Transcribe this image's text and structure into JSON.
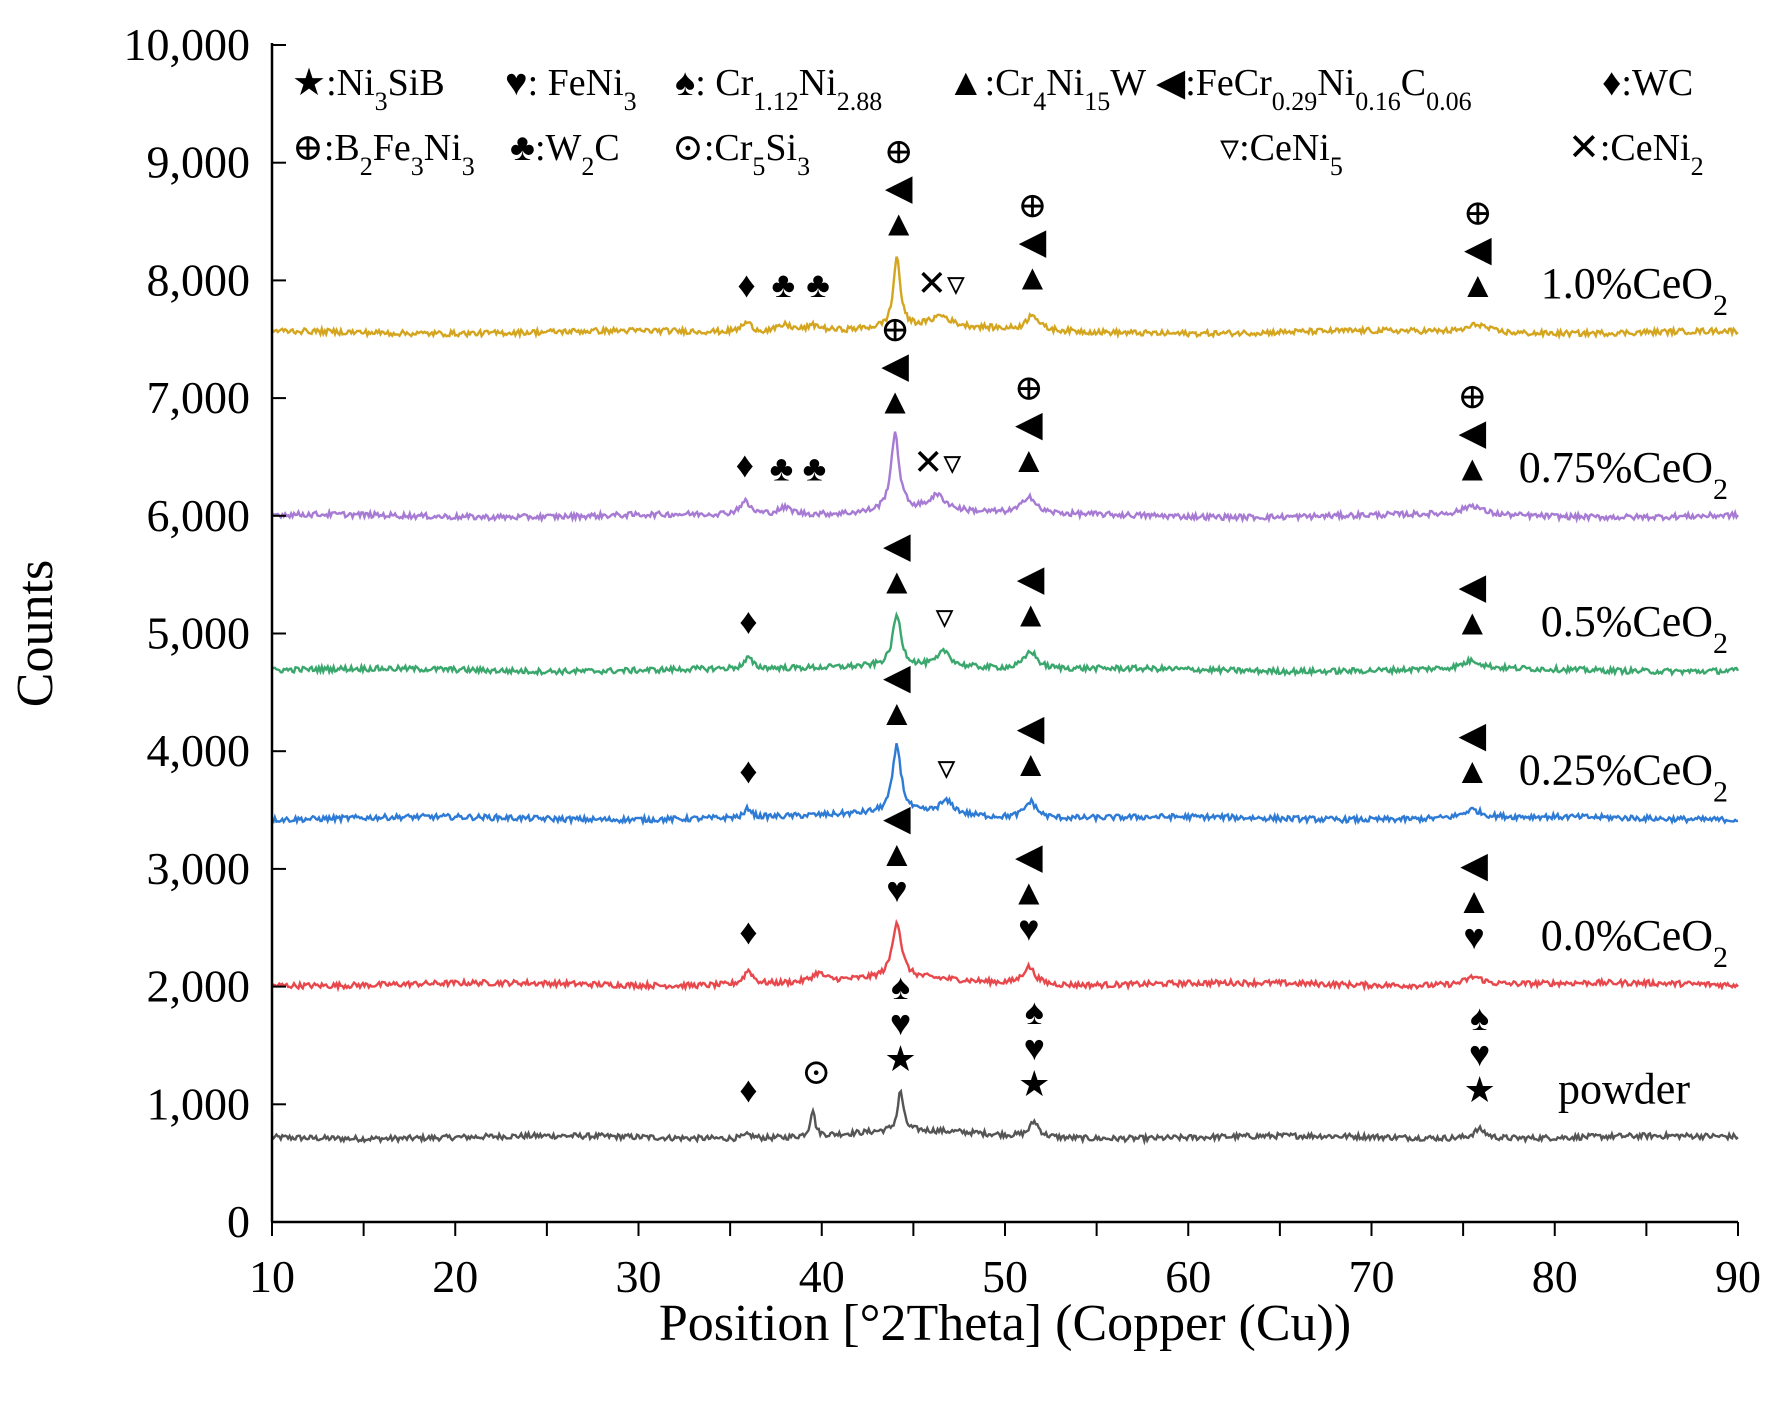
{
  "chart_data": {
    "type": "line",
    "title": "",
    "xlabel": "Position [°2Theta] (Copper (Cu))",
    "ylabel": "Counts",
    "xlim": [
      10,
      90
    ],
    "ylim": [
      0,
      10000
    ],
    "x_ticks": [
      10,
      20,
      30,
      40,
      50,
      60,
      70,
      80,
      90
    ],
    "y_ticks": [
      0,
      1000,
      2000,
      3000,
      4000,
      5000,
      6000,
      7000,
      8000,
      9000,
      10000
    ],
    "x_tick_labels": [
      "10",
      "20",
      "30",
      "40",
      "50",
      "60",
      "70",
      "80",
      "90"
    ],
    "y_tick_labels": [
      "0",
      "1,000",
      "2,000",
      "3,000",
      "4,000",
      "5,000",
      "6,000",
      "7,000",
      "8,000",
      "9,000",
      "10,000"
    ],
    "legend": [
      {
        "symbol": "★",
        "label": ":Ni3SiB",
        "parts": [
          ":Ni",
          {
            "sub": "3"
          },
          "SiB"
        ]
      },
      {
        "symbol": "♥",
        "label": ": FeNi3",
        "parts": [
          ": FeNi",
          {
            "sub": "3"
          }
        ]
      },
      {
        "symbol": "♠",
        "label": ": Cr1.12Ni2.88",
        "parts": [
          ": Cr",
          {
            "sub": "1.12"
          },
          "Ni",
          {
            "sub": "2.88"
          }
        ]
      },
      {
        "symbol": "▲",
        "label": ":Cr4Ni15W",
        "parts": [
          ":Cr",
          {
            "sub": "4"
          },
          "Ni",
          {
            "sub": "15"
          },
          "W"
        ]
      },
      {
        "symbol": "◀",
        "label": ":FeCr0.29Ni0.16C0.06",
        "parts": [
          ":FeCr",
          {
            "sub": "0.29"
          },
          "Ni",
          {
            "sub": "0.16"
          },
          "C",
          {
            "sub": "0.06"
          }
        ]
      },
      {
        "symbol": "♦",
        "label": ":WC",
        "parts": [
          ":WC"
        ]
      },
      {
        "symbol": "⊕",
        "label": ":B2Fe3Ni3",
        "parts": [
          ":B",
          {
            "sub": "2"
          },
          "Fe",
          {
            "sub": "3"
          },
          "Ni",
          {
            "sub": "3"
          }
        ]
      },
      {
        "symbol": "♣",
        "label": ":W2C",
        "parts": [
          ":W",
          {
            "sub": "2"
          },
          "C"
        ]
      },
      {
        "symbol": "⊙",
        "label": ":Cr5Si3",
        "parts": [
          ":Cr",
          {
            "sub": "5"
          },
          "Si",
          {
            "sub": "3"
          }
        ]
      },
      {
        "symbol": "▿",
        "label": ":CeNi5",
        "parts": [
          ":CeNi",
          {
            "sub": "5"
          }
        ]
      },
      {
        "symbol": "✕",
        "label": ":CeNi2",
        "parts": [
          ":CeNi",
          {
            "sub": "2"
          }
        ]
      }
    ],
    "series": [
      {
        "name": "powder",
        "label_parts": [
          "powder"
        ],
        "color": "#555555",
        "baseline": 720,
        "noise": 30,
        "peaks": [
          [
            36.0,
            30,
            0.3
          ],
          [
            39.5,
            230,
            0.15
          ],
          [
            44.3,
            340,
            0.18
          ],
          [
            51.6,
            130,
            0.3
          ],
          [
            75.9,
            80,
            0.4
          ]
        ],
        "markers": [
          {
            "x": 36.0,
            "symbols": [
              "♦"
            ]
          },
          {
            "x": 39.7,
            "symbols": [
              "⊙"
            ]
          },
          {
            "x": 44.3,
            "symbols": [
              "♠",
              "♥",
              "★"
            ]
          },
          {
            "x": 51.6,
            "symbols": [
              "♠",
              "♥",
              "★"
            ]
          },
          {
            "x": 75.9,
            "symbols": [
              "♠",
              "♥",
              "★"
            ]
          }
        ]
      },
      {
        "name": "0.0%CeO2",
        "label_parts": [
          "0.0%CeO",
          {
            "sub": "2"
          }
        ],
        "color": "#e8474c",
        "baseline": 2020,
        "noise": 30,
        "peaks": [
          [
            36.0,
            120,
            0.3
          ],
          [
            39.8,
            70,
            0.4
          ],
          [
            44.1,
            480,
            0.3
          ],
          [
            51.3,
            150,
            0.4
          ],
          [
            75.6,
            70,
            0.6
          ]
        ],
        "markers": [
          {
            "x": 36.0,
            "symbols": [
              "♦"
            ]
          },
          {
            "x": 44.1,
            "symbols": [
              "◀",
              "▲",
              "♥"
            ]
          },
          {
            "x": 51.3,
            "symbols": [
              "◀",
              "▲",
              "♥"
            ]
          },
          {
            "x": 75.6,
            "symbols": [
              "◀",
              "▲",
              "♥"
            ]
          }
        ]
      },
      {
        "name": "0.25%CeO2",
        "label_parts": [
          "0.25%CeO",
          {
            "sub": "2"
          }
        ],
        "color": "#2e7bd6",
        "baseline": 3430,
        "noise": 30,
        "peaks": [
          [
            36.0,
            80,
            0.2
          ],
          [
            44.1,
            570,
            0.28
          ],
          [
            46.8,
            110,
            0.5
          ],
          [
            51.4,
            140,
            0.4
          ],
          [
            75.5,
            70,
            0.6
          ]
        ],
        "markers": [
          {
            "x": 36.0,
            "symbols": [
              "♦"
            ]
          },
          {
            "x": 44.1,
            "symbols": [
              "◀",
              "▲"
            ]
          },
          {
            "x": 46.8,
            "symbols": [
              "▿"
            ]
          },
          {
            "x": 51.4,
            "symbols": [
              "◀",
              "▲"
            ]
          },
          {
            "x": 75.5,
            "symbols": [
              "◀",
              "▲"
            ]
          }
        ]
      },
      {
        "name": "0.5%CeO2",
        "label_parts": [
          "0.5%CeO",
          {
            "sub": "2"
          }
        ],
        "color": "#3aa76d",
        "baseline": 4690,
        "noise": 30,
        "peaks": [
          [
            36.0,
            90,
            0.25
          ],
          [
            44.1,
            430,
            0.28
          ],
          [
            46.7,
            130,
            0.4
          ],
          [
            51.4,
            150,
            0.4
          ],
          [
            75.5,
            70,
            0.6
          ]
        ],
        "markers": [
          {
            "x": 36.0,
            "symbols": [
              "♦"
            ]
          },
          {
            "x": 44.1,
            "symbols": [
              "◀",
              "▲"
            ]
          },
          {
            "x": 46.7,
            "symbols": [
              "▿"
            ]
          },
          {
            "x": 51.4,
            "symbols": [
              "◀",
              "▲"
            ]
          },
          {
            "x": 75.5,
            "symbols": [
              "◀",
              "▲"
            ]
          }
        ]
      },
      {
        "name": "0.75%CeO2",
        "label_parts": [
          "0.75%CeO",
          {
            "sub": "2"
          }
        ],
        "color": "#a77bd4",
        "baseline": 6000,
        "noise": 30,
        "peaks": [
          [
            35.8,
            110,
            0.35
          ],
          [
            38.0,
            60,
            0.5
          ],
          [
            44.0,
            650,
            0.28
          ],
          [
            46.3,
            130,
            0.6
          ],
          [
            51.3,
            150,
            0.4
          ],
          [
            75.5,
            80,
            0.6
          ]
        ],
        "markers": [
          {
            "x": 35.8,
            "symbols": [
              "♦"
            ]
          },
          {
            "x": 37.8,
            "symbols": [
              "♣"
            ]
          },
          {
            "x": 39.6,
            "symbols": [
              "♣"
            ]
          },
          {
            "x": 44.0,
            "symbols": [
              "⊕",
              "◀",
              "▲"
            ]
          },
          {
            "x": 46.3,
            "symbols": [
              "✕▿"
            ]
          },
          {
            "x": 51.3,
            "symbols": [
              "⊕",
              "◀",
              "▲"
            ]
          },
          {
            "x": 75.5,
            "symbols": [
              "⊕",
              "◀",
              "▲"
            ]
          }
        ]
      },
      {
        "name": "1.0%CeO2",
        "label_parts": [
          "1.0%CeO",
          {
            "sub": "2"
          }
        ],
        "color": "#d4a51e",
        "baseline": 7560,
        "noise": 30,
        "peaks": [
          [
            35.9,
            80,
            0.35
          ],
          [
            38.0,
            60,
            0.5
          ],
          [
            39.6,
            50,
            0.5
          ],
          [
            44.1,
            600,
            0.22
          ],
          [
            46.5,
            90,
            0.6
          ],
          [
            51.5,
            140,
            0.35
          ],
          [
            75.8,
            70,
            0.6
          ]
        ],
        "markers": [
          {
            "x": 35.9,
            "symbols": [
              "♦"
            ]
          },
          {
            "x": 37.9,
            "symbols": [
              "♣"
            ]
          },
          {
            "x": 39.8,
            "symbols": [
              "♣"
            ]
          },
          {
            "x": 44.2,
            "symbols": [
              "⊕",
              "◀",
              "▲"
            ]
          },
          {
            "x": 46.5,
            "symbols": [
              "✕▿"
            ]
          },
          {
            "x": 51.5,
            "symbols": [
              "⊕",
              "◀",
              "▲"
            ]
          },
          {
            "x": 75.8,
            "symbols": [
              "⊕",
              "◀",
              "▲"
            ]
          }
        ]
      }
    ]
  }
}
